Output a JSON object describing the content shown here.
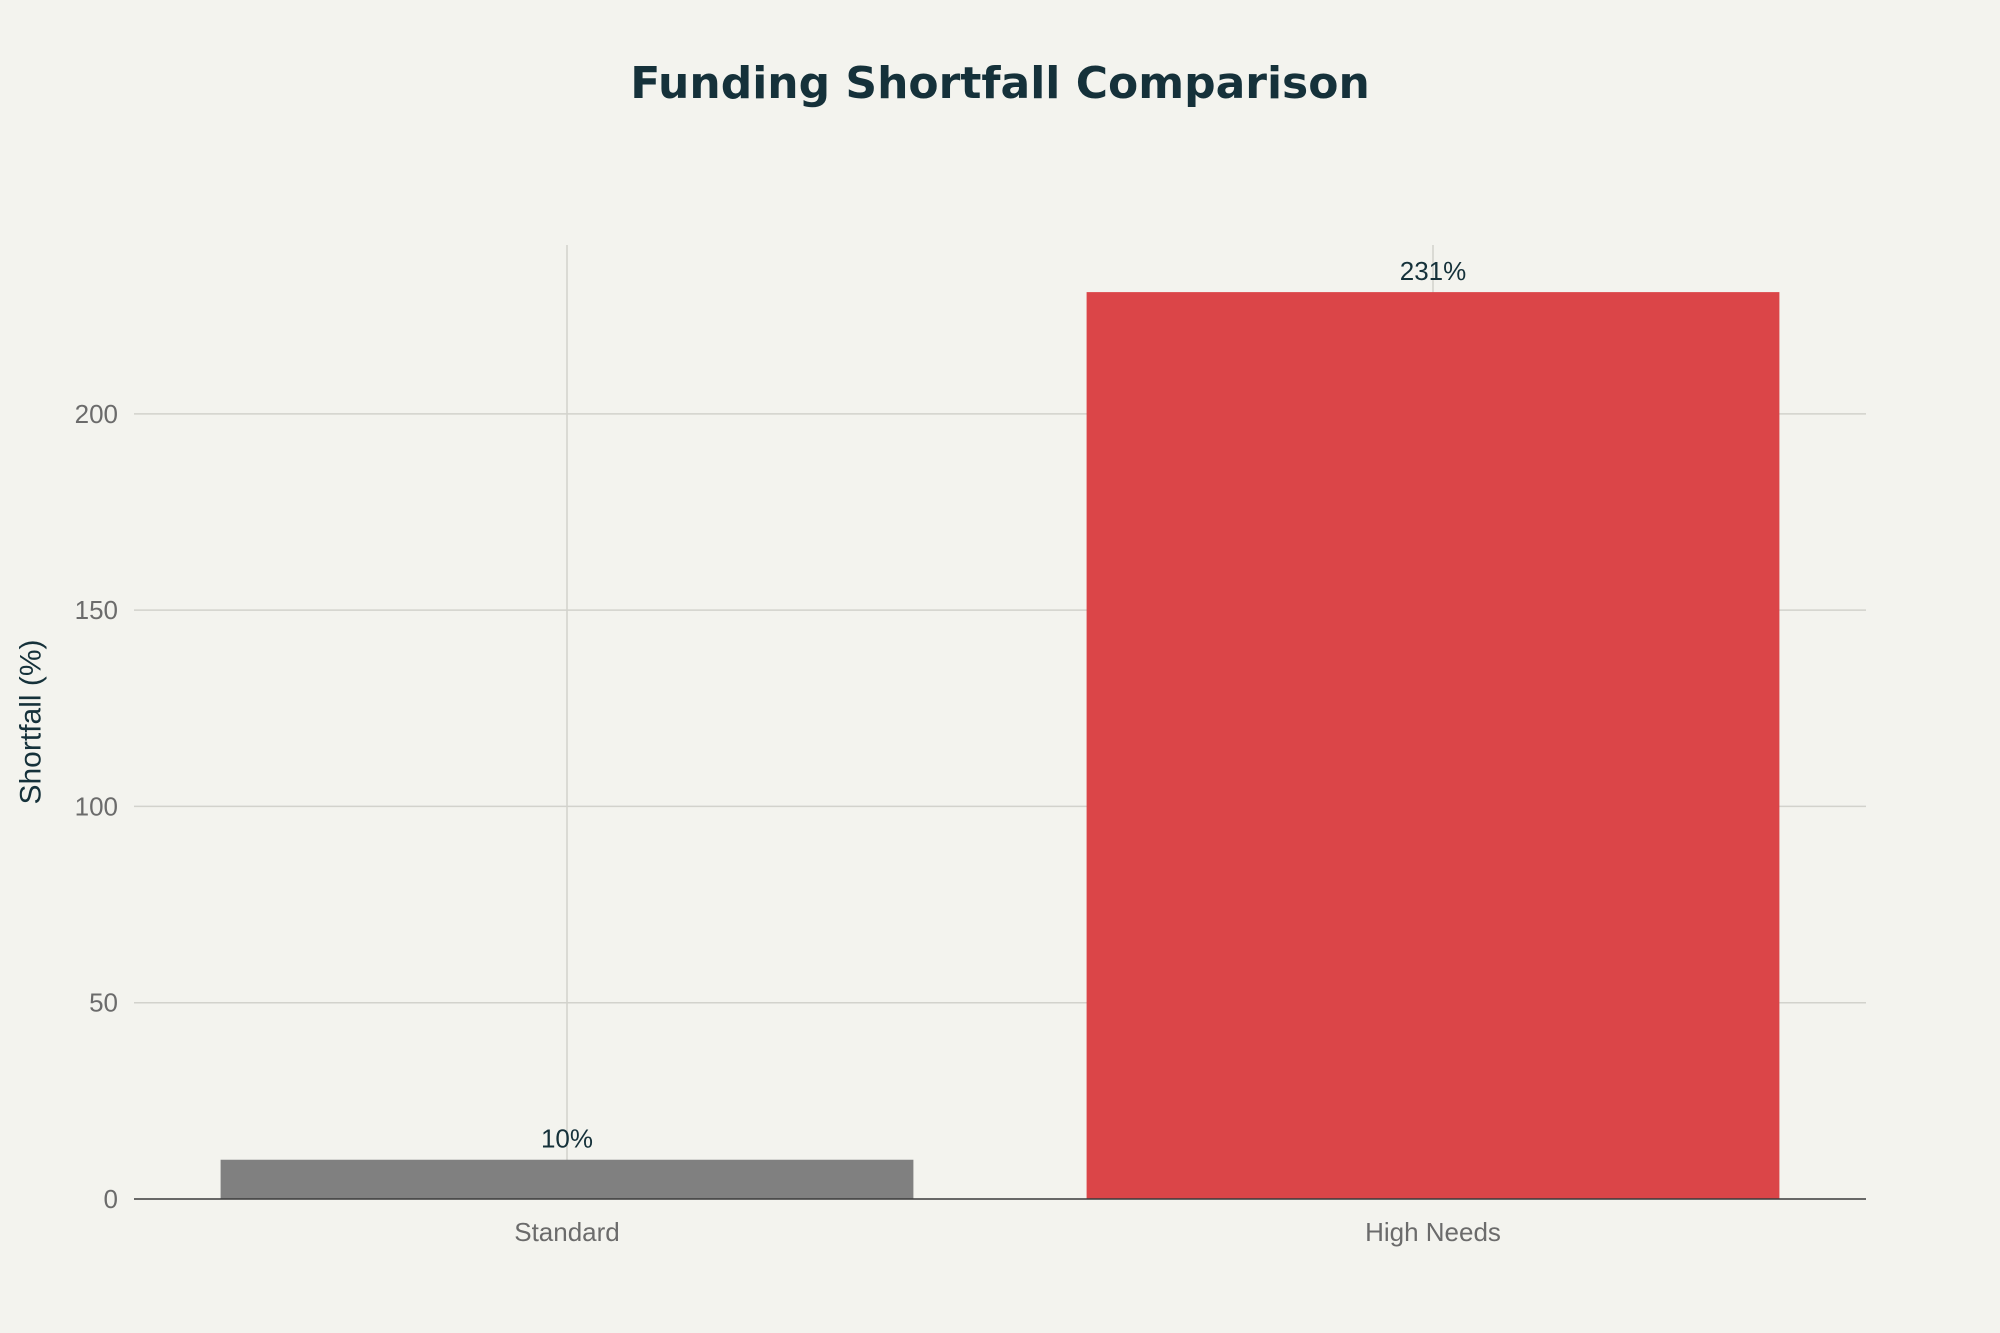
{
  "chart_data": {
    "type": "bar",
    "title": "Funding Shortfall Comparison",
    "xlabel": "",
    "ylabel": "Shortfall (%)",
    "categories": [
      "Standard",
      "High Needs"
    ],
    "values": [
      10,
      231
    ],
    "data_labels": [
      "10%",
      "231%"
    ],
    "bar_colors": [
      "#808080",
      "#db4548"
    ],
    "ylim": [
      0,
      243
    ],
    "yticks": [
      0,
      50,
      100,
      150,
      200
    ],
    "ytick_labels": [
      "0",
      "50",
      "100",
      "150",
      "200"
    ],
    "grid": true,
    "legend": "none"
  }
}
